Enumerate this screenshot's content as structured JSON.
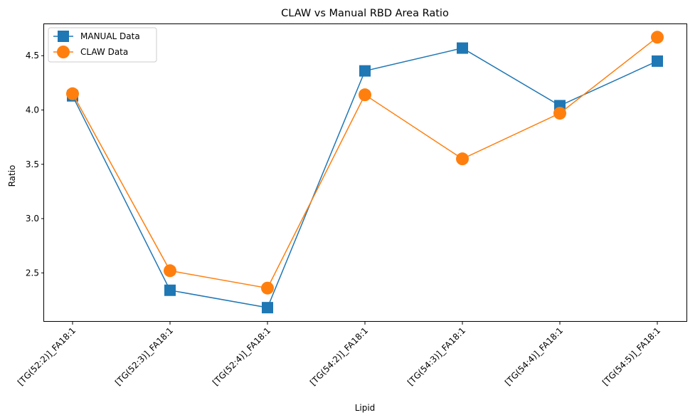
{
  "chart_data": {
    "type": "line",
    "title": "CLAW vs Manual RBD Area Ratio",
    "xlabel": "Lipid",
    "ylabel": "Ratio",
    "categories": [
      "[TG(52:2)]_FA18:1",
      "[TG(52:3)]_FA18:1",
      "[TG(52:4)]_FA18:1",
      "[TG(54:2)]_FA18:1",
      "[TG(54:3)]_FA18:1",
      "[TG(54:4)]_FA18:1",
      "[TG(54:5)]_FA18:1"
    ],
    "ylim": [
      2.05,
      4.79
    ],
    "yticks": [
      "2.5",
      "3.0",
      "3.5",
      "4.0",
      "4.5"
    ],
    "grid": false,
    "legend_position": "top-left",
    "series": [
      {
        "name": "MANUAL Data",
        "marker": "square",
        "color": "#1f77b4",
        "values": [
          4.13,
          2.34,
          2.18,
          4.36,
          4.57,
          4.04,
          4.45
        ]
      },
      {
        "name": "CLAW Data",
        "marker": "circle",
        "color": "#ff7f0e",
        "values": [
          4.15,
          2.52,
          2.36,
          4.14,
          3.55,
          3.97,
          4.67
        ]
      }
    ]
  }
}
